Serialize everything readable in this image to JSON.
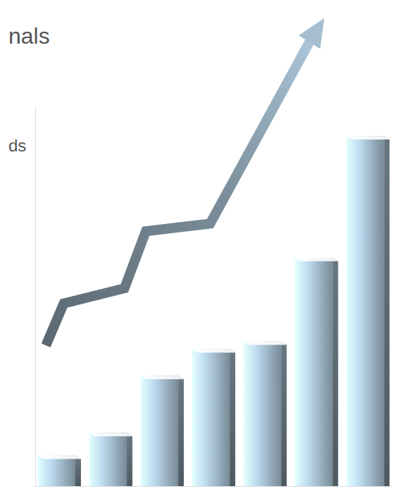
{
  "chart_data": {
    "type": "bar",
    "annotations": [
      "nals",
      "ds"
    ],
    "categories": [
      null,
      null,
      null,
      null,
      null,
      null,
      null
    ],
    "values": [
      8,
      14,
      29,
      36,
      38,
      60,
      92
    ],
    "color": "#8a9fae",
    "ylim": [
      0,
      100
    ],
    "yticks": [],
    "tick_labels": false
  }
}
